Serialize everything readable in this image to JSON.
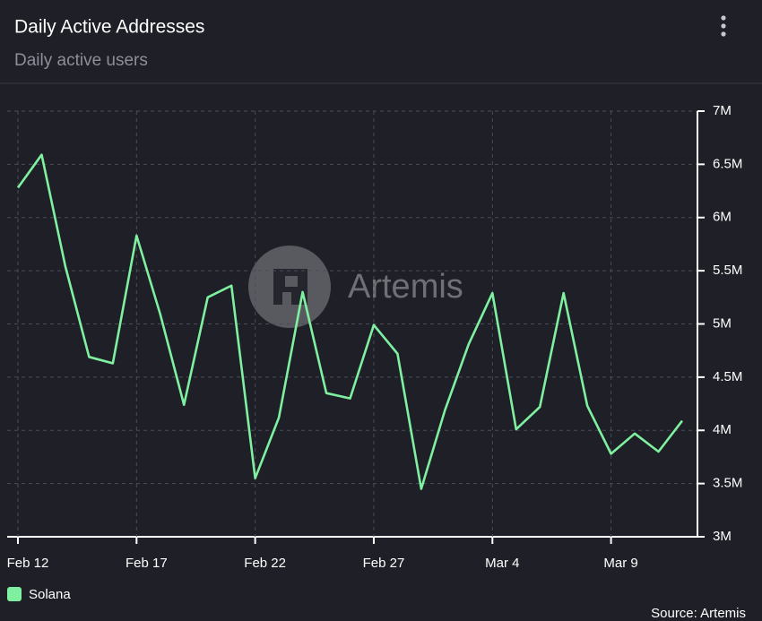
{
  "header": {
    "title": "Daily Active Addresses",
    "subtitle": "Daily active users"
  },
  "chart_data": {
    "type": "line",
    "categories": [
      "Feb 12",
      null,
      null,
      null,
      null,
      "Feb 17",
      null,
      null,
      null,
      null,
      "Feb 22",
      null,
      null,
      null,
      null,
      "Feb 27",
      null,
      null,
      null,
      null,
      "Mar 4",
      null,
      null,
      null,
      null,
      "Mar 9",
      null,
      null,
      null
    ],
    "series": [
      {
        "name": "Solana",
        "color": "#7ef0a0",
        "values": [
          6280000,
          6590000,
          5540000,
          4690000,
          4630000,
          5830000,
          5090000,
          4240000,
          5250000,
          5360000,
          3550000,
          4120000,
          5300000,
          4350000,
          4300000,
          4990000,
          4720000,
          3450000,
          4190000,
          4810000,
          5290000,
          4010000,
          4220000,
          5290000,
          4230000,
          3780000,
          3970000,
          3800000,
          4090000
        ]
      }
    ],
    "ylim": [
      3000000,
      7000000
    ],
    "yticks": [
      {
        "value": 3000000,
        "label": "3M"
      },
      {
        "value": 3500000,
        "label": "3.5M"
      },
      {
        "value": 4000000,
        "label": "4M"
      },
      {
        "value": 4500000,
        "label": "4.5M"
      },
      {
        "value": 5000000,
        "label": "5M"
      },
      {
        "value": 5500000,
        "label": "5.5M"
      },
      {
        "value": 6000000,
        "label": "6M"
      },
      {
        "value": 6500000,
        "label": "6.5M"
      },
      {
        "value": 7000000,
        "label": "7M"
      }
    ],
    "grid": true,
    "legend": "bottom-left",
    "watermark": "Artemis",
    "source": "Source: Artemis"
  }
}
